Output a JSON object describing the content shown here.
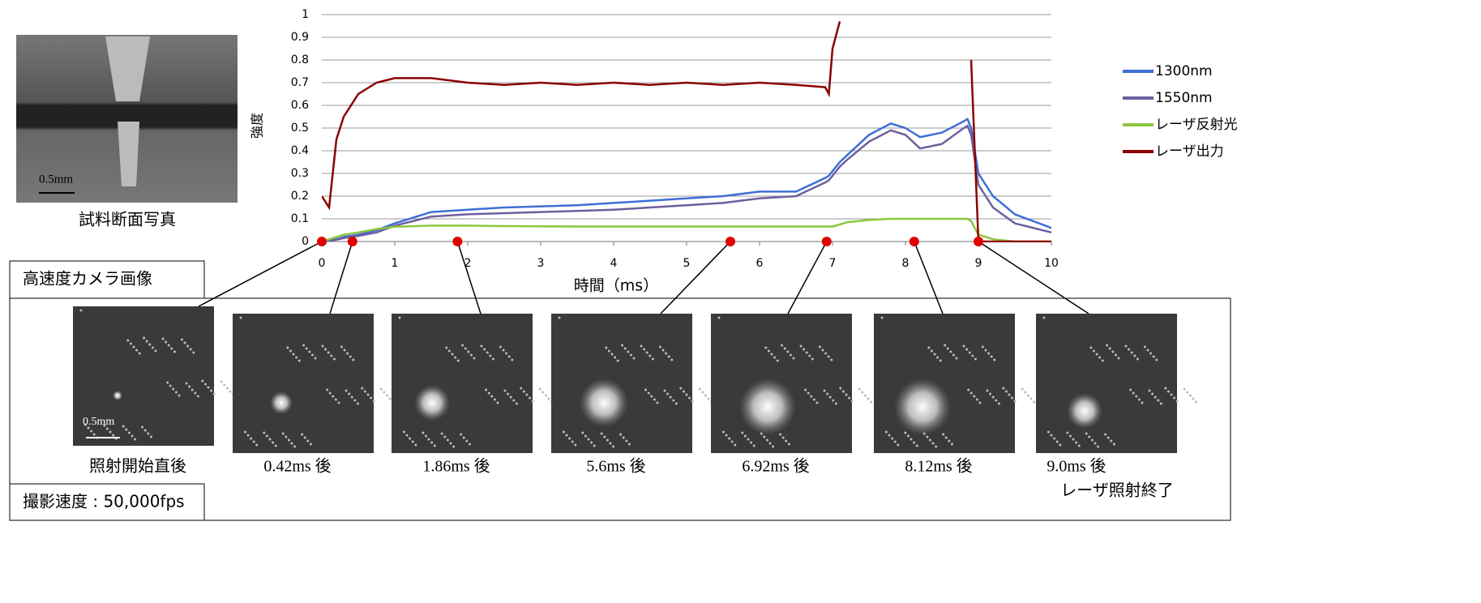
{
  "chart_data": {
    "type": "line",
    "y_label": "強度",
    "x_label": "時間（ms）",
    "x": [
      0,
      0.1,
      0.2,
      0.3,
      0.5,
      0.75,
      1,
      1.5,
      2,
      2.5,
      3,
      3.5,
      4,
      4.5,
      5,
      5.5,
      6,
      6.5,
      6.9,
      6.95,
      7,
      7.1,
      7.2,
      7.5,
      7.8,
      8,
      8.2,
      8.5,
      8.8,
      8.85,
      8.9,
      9,
      9.2,
      9.5,
      10
    ],
    "series": [
      {
        "name": "1300nm",
        "color": "#3d6fd6",
        "values": [
          0,
          0.005,
          0.01,
          0.02,
          0.03,
          0.05,
          0.08,
          0.13,
          0.14,
          0.15,
          0.155,
          0.16,
          0.17,
          0.18,
          0.19,
          0.2,
          0.22,
          0.22,
          0.28,
          0.29,
          0.31,
          0.35,
          0.38,
          0.47,
          0.52,
          0.5,
          0.46,
          0.48,
          0.53,
          0.54,
          0.5,
          0.3,
          0.2,
          0.12,
          0.06
        ]
      },
      {
        "name": "1550nm",
        "color": "#6e5f9e",
        "values": [
          0,
          0.003,
          0.008,
          0.015,
          0.025,
          0.04,
          0.07,
          0.11,
          0.12,
          0.125,
          0.13,
          0.135,
          0.14,
          0.15,
          0.16,
          0.17,
          0.19,
          0.2,
          0.26,
          0.27,
          0.29,
          0.33,
          0.36,
          0.44,
          0.49,
          0.47,
          0.41,
          0.43,
          0.5,
          0.51,
          0.47,
          0.25,
          0.15,
          0.08,
          0.04
        ]
      },
      {
        "name": "レーザ反射光",
        "color": "#8dc63f",
        "values": [
          0,
          0.01,
          0.02,
          0.03,
          0.04,
          0.055,
          0.065,
          0.07,
          0.07,
          0.068,
          0.067,
          0.066,
          0.066,
          0.066,
          0.066,
          0.066,
          0.066,
          0.066,
          0.066,
          0.066,
          0.066,
          0.075,
          0.085,
          0.095,
          0.1,
          0.1,
          0.1,
          0.1,
          0.1,
          0.1,
          0.09,
          0.03,
          0.01,
          0,
          0
        ]
      },
      {
        "name": "レーザ出力",
        "color": "#8b0000",
        "values": [
          0.2,
          0.15,
          0.45,
          0.55,
          0.65,
          0.7,
          0.72,
          0.72,
          0.7,
          0.69,
          0.7,
          0.69,
          0.7,
          0.69,
          0.7,
          0.69,
          0.7,
          0.69,
          0.68,
          0.65,
          0.85,
          0.97,
          null,
          null,
          null,
          null,
          null,
          null,
          null,
          null,
          0.8,
          0,
          0,
          0,
          0
        ]
      }
    ],
    "xlim": [
      0,
      10
    ],
    "xticks": [
      0,
      1,
      2,
      3,
      4,
      5,
      6,
      7,
      8,
      9,
      10
    ],
    "ylim": [
      0,
      1
    ],
    "yticks": [
      0,
      0.1,
      0.2,
      0.3,
      0.4,
      0.5,
      0.6,
      0.7,
      0.8,
      0.9,
      1
    ],
    "grid": true,
    "legend": "right",
    "markers": [
      0,
      0.42,
      1.86,
      5.6,
      6.92,
      8.12,
      9.0
    ],
    "marker_color": "#e00000"
  },
  "photo": {
    "caption": "試料断面写真",
    "scale": "0.5mm"
  },
  "camera": {
    "title": "高速度カメラ画像",
    "speed": "撮影速度 : 50,000fps",
    "scale": "0.5mm",
    "frames": [
      {
        "caption": "照射開始直後"
      },
      {
        "caption": "0.42ms 後"
      },
      {
        "caption": "1.86ms 後"
      },
      {
        "caption": "5.6ms 後"
      },
      {
        "caption": "6.92ms 後"
      },
      {
        "caption": "8.12ms 後"
      },
      {
        "caption": "9.0ms 後",
        "note": "レーザ照射終了"
      }
    ]
  }
}
